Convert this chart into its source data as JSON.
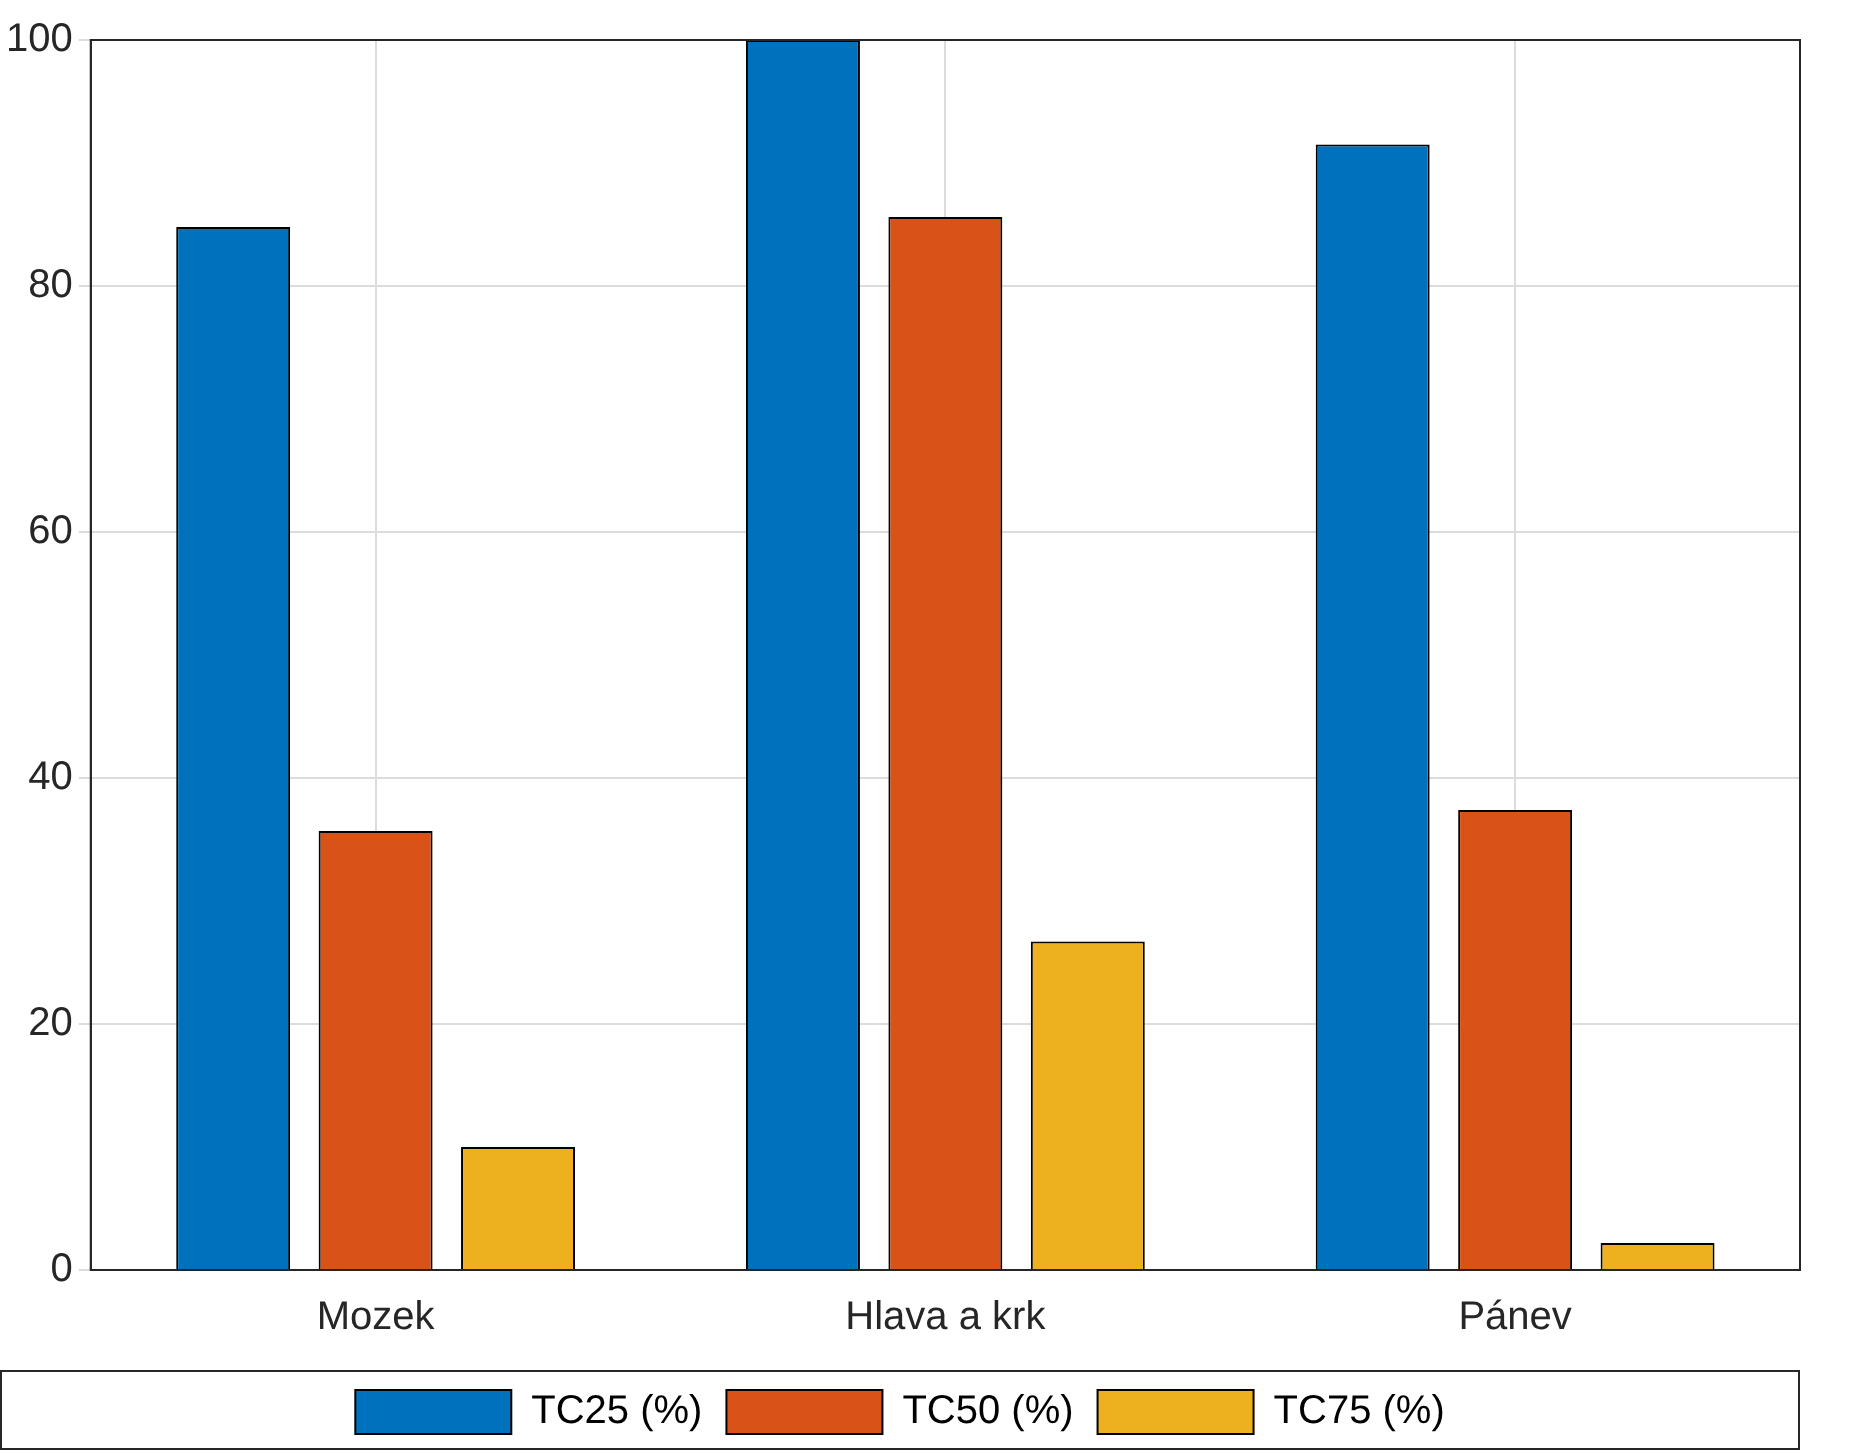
{
  "chart_data": {
    "type": "bar",
    "categories": [
      "Mozek",
      "Hlava a krk",
      "Pánev"
    ],
    "series": [
      {
        "name": "TC25 (%)",
        "color": "#0072bd",
        "values": [
          84.8,
          100,
          91.5
        ]
      },
      {
        "name": "TC50 (%)",
        "color": "#d95319",
        "values": [
          35.7,
          85.6,
          37.4
        ]
      },
      {
        "name": "TC75 (%)",
        "color": "#edb120",
        "values": [
          10.0,
          26.7,
          2.2
        ]
      }
    ],
    "ylim": [
      0,
      100
    ],
    "yticks": [
      0,
      20,
      40,
      60,
      80,
      100
    ],
    "grid": true,
    "legend": "bottom"
  }
}
